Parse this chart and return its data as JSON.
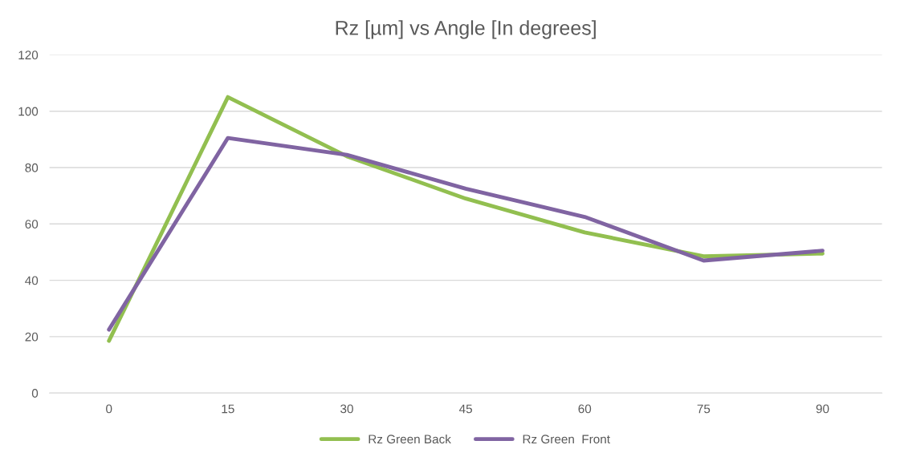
{
  "chart_data": {
    "type": "line",
    "title": "Rz [µm] vs Angle [In degrees]",
    "categories": [
      "0",
      "15",
      "30",
      "45",
      "60",
      "75",
      "90"
    ],
    "series": [
      {
        "name": "Rz Green Back",
        "color": "#92bf50",
        "values": [
          18.5,
          105,
          84,
          69,
          57,
          48.5,
          49.5
        ]
      },
      {
        "name": "Rz Green  Front",
        "color": "#8064a2",
        "values": [
          22.5,
          90.5,
          84.5,
          72.5,
          62.5,
          47,
          50.5
        ]
      }
    ],
    "ylim": [
      0,
      120
    ],
    "yticks": [
      0,
      20,
      40,
      60,
      80,
      100,
      120
    ],
    "grid": "y",
    "legend": "bottom",
    "marker": "none",
    "line_style": "solid"
  }
}
